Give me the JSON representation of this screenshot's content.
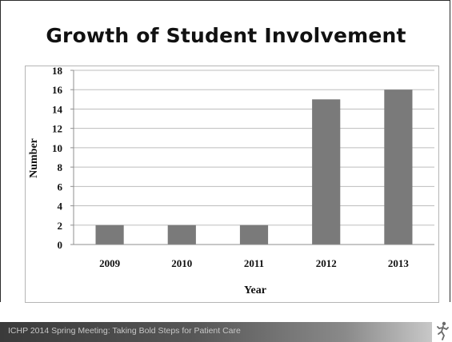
{
  "slide": {
    "title": "Growth of Student Involvement",
    "footer": "ICHP 2014 Spring Meeting: Taking Bold Steps for Patient Care",
    "logo_icon": "walking-figure-icon"
  },
  "colors": {
    "bar": "#7a7a7a",
    "gridline": "#bdbdbd",
    "text": "#111111",
    "footer_bar": "#575757"
  },
  "chart_data": {
    "type": "bar",
    "categories": [
      "2009",
      "2010",
      "2011",
      "2012",
      "2013"
    ],
    "values": [
      2,
      2,
      2,
      15,
      16
    ],
    "yticks": [
      "0",
      "2",
      "4",
      "6",
      "8",
      "10",
      "12",
      "14",
      "16",
      "18"
    ],
    "xlabel": "Year",
    "ylabel": "Number",
    "ylim": [
      0,
      18
    ],
    "grid": true,
    "legend": "none"
  }
}
